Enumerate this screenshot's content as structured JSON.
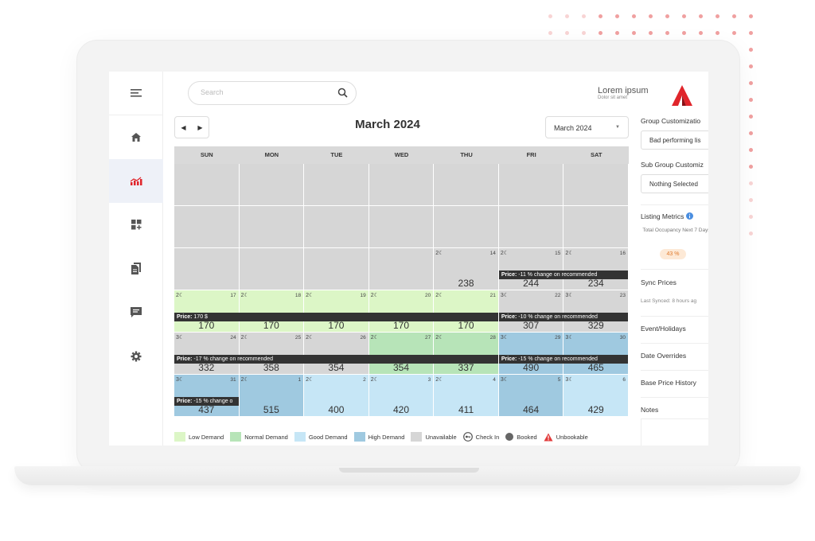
{
  "header": {
    "search_placeholder": "Search",
    "brand_title": "Lorem ipsum",
    "brand_subtitle": "Dolor sit amet"
  },
  "sidebar": {
    "items": [
      {
        "icon": "home-icon"
      },
      {
        "icon": "chart-icon",
        "active": true
      },
      {
        "icon": "dashboard-icon"
      },
      {
        "icon": "documents-icon"
      },
      {
        "icon": "chat-icon"
      },
      {
        "icon": "gear-icon"
      }
    ]
  },
  "calendar": {
    "title": "March 2024",
    "month_select": "March 2024",
    "days_of_week": [
      "SUN",
      "MON",
      "TUE",
      "WED",
      "THU",
      "FRI",
      "SAT"
    ],
    "weeks": [
      [
        {
          "type": "empty"
        },
        {
          "type": "empty"
        },
        {
          "type": "empty"
        },
        {
          "type": "empty"
        },
        {
          "type": "empty"
        },
        {
          "type": "empty"
        },
        {
          "type": "empty"
        }
      ],
      [
        {
          "type": "empty"
        },
        {
          "type": "empty"
        },
        {
          "type": "empty"
        },
        {
          "type": "empty"
        },
        {
          "type": "empty"
        },
        {
          "type": "empty"
        },
        {
          "type": "empty"
        }
      ],
      [
        {
          "type": "empty"
        },
        {
          "type": "empty"
        },
        {
          "type": "empty"
        },
        {
          "type": "empty"
        },
        {
          "type": "unavail",
          "nights": "2",
          "date": "14",
          "price": "238"
        },
        {
          "type": "unavail",
          "nights": "2",
          "date": "15",
          "price": "244"
        },
        {
          "type": "unavail",
          "nights": "2",
          "date": "16",
          "price": "234"
        }
      ],
      [
        {
          "type": "low",
          "nights": "2",
          "date": "17",
          "price": "170"
        },
        {
          "type": "low",
          "nights": "2",
          "date": "18",
          "price": "170"
        },
        {
          "type": "low",
          "nights": "2",
          "date": "19",
          "price": "170"
        },
        {
          "type": "low",
          "nights": "2",
          "date": "20",
          "price": "170"
        },
        {
          "type": "low",
          "nights": "2",
          "date": "21",
          "price": "170"
        },
        {
          "type": "unavail",
          "nights": "3",
          "date": "22",
          "price": "307"
        },
        {
          "type": "unavail",
          "nights": "3",
          "date": "23",
          "price": "329"
        }
      ],
      [
        {
          "type": "unavail",
          "nights": "3",
          "date": "24",
          "price": "332"
        },
        {
          "type": "unavail",
          "nights": "2",
          "date": "25",
          "price": "358"
        },
        {
          "type": "unavail",
          "nights": "2",
          "date": "26",
          "price": "354"
        },
        {
          "type": "normal",
          "nights": "2",
          "date": "27",
          "price": "354"
        },
        {
          "type": "normal",
          "nights": "2",
          "date": "28",
          "price": "337"
        },
        {
          "type": "high",
          "nights": "3",
          "date": "29",
          "price": "490"
        },
        {
          "type": "high",
          "nights": "3",
          "date": "30",
          "price": "465"
        }
      ],
      [
        {
          "type": "high",
          "nights": "3",
          "date": "31",
          "price": "437"
        },
        {
          "type": "high",
          "nights": "2",
          "date": "1",
          "price": "515"
        },
        {
          "type": "good",
          "nights": "2",
          "date": "2",
          "price": "400"
        },
        {
          "type": "good",
          "nights": "2",
          "date": "3",
          "price": "420"
        },
        {
          "type": "good",
          "nights": "2",
          "date": "4",
          "price": "411"
        },
        {
          "type": "high",
          "nights": "3",
          "date": "5",
          "price": "464"
        },
        {
          "type": "good",
          "nights": "3",
          "date": "6",
          "price": "429"
        }
      ]
    ],
    "bands": [
      {
        "week": 2,
        "start": 5,
        "span": 2,
        "label": "Price:",
        "text": " -11 % change on recommended"
      },
      {
        "week": 3,
        "start": 0,
        "span": 5,
        "label": "Price:",
        "text": " 170 $"
      },
      {
        "week": 3,
        "start": 5,
        "span": 2,
        "label": "Price:",
        "text": " -10 % change on recommended"
      },
      {
        "week": 4,
        "start": 0,
        "span": 5,
        "label": "Price:",
        "text": " -17 % change on recommended"
      },
      {
        "week": 4,
        "start": 5,
        "span": 2,
        "label": "Price:",
        "text": " -15 % change on recommended"
      },
      {
        "week": 5,
        "start": 0,
        "span": 1,
        "label": "Price:",
        "text": " -15 % change o"
      }
    ]
  },
  "legend": [
    {
      "label": "Low Demand",
      "color": "#dcf6c6",
      "kind": "swatch"
    },
    {
      "label": "Normal Demand",
      "color": "#b7e4b8",
      "kind": "swatch"
    },
    {
      "label": "Good Demand",
      "color": "#c6e6f6",
      "kind": "swatch"
    },
    {
      "label": "High Demand",
      "color": "#9fc9e0",
      "kind": "swatch"
    },
    {
      "label": "Unavailable",
      "color": "#d6d6d6",
      "kind": "swatch"
    },
    {
      "label": "Check In",
      "color": "#555555",
      "kind": "checkin"
    },
    {
      "label": "Booked",
      "color": "#666666",
      "kind": "circle"
    },
    {
      "label": "Unbookable",
      "color": "#e23b3b",
      "kind": "warning"
    }
  ],
  "right_panel": {
    "group_customization_label": "Group Customizatio",
    "group_customization_value": "Bad performing lis",
    "sub_group_label": "Sub Group Customiz",
    "sub_group_value": "Nothing Selected",
    "listing_metrics_label": "Listing Metrics",
    "occupancy_text": "Total Occupancy Next 7 Days",
    "occupancy_value": "43 %",
    "sync_prices_label": "Sync Prices",
    "last_synced": "Last Synced: 8 hours ag",
    "events_label": "Event/Holidays",
    "date_overrides_label": "Date Overrides",
    "base_price_label": "Base Price History",
    "notes_label": "Notes"
  },
  "colors": {
    "accent": "#e0252b",
    "low": "#dcf6c6",
    "normal": "#b7e4b8",
    "good": "#c6e6f6",
    "high": "#9fc9e0",
    "unavailable": "#d6d6d6"
  }
}
